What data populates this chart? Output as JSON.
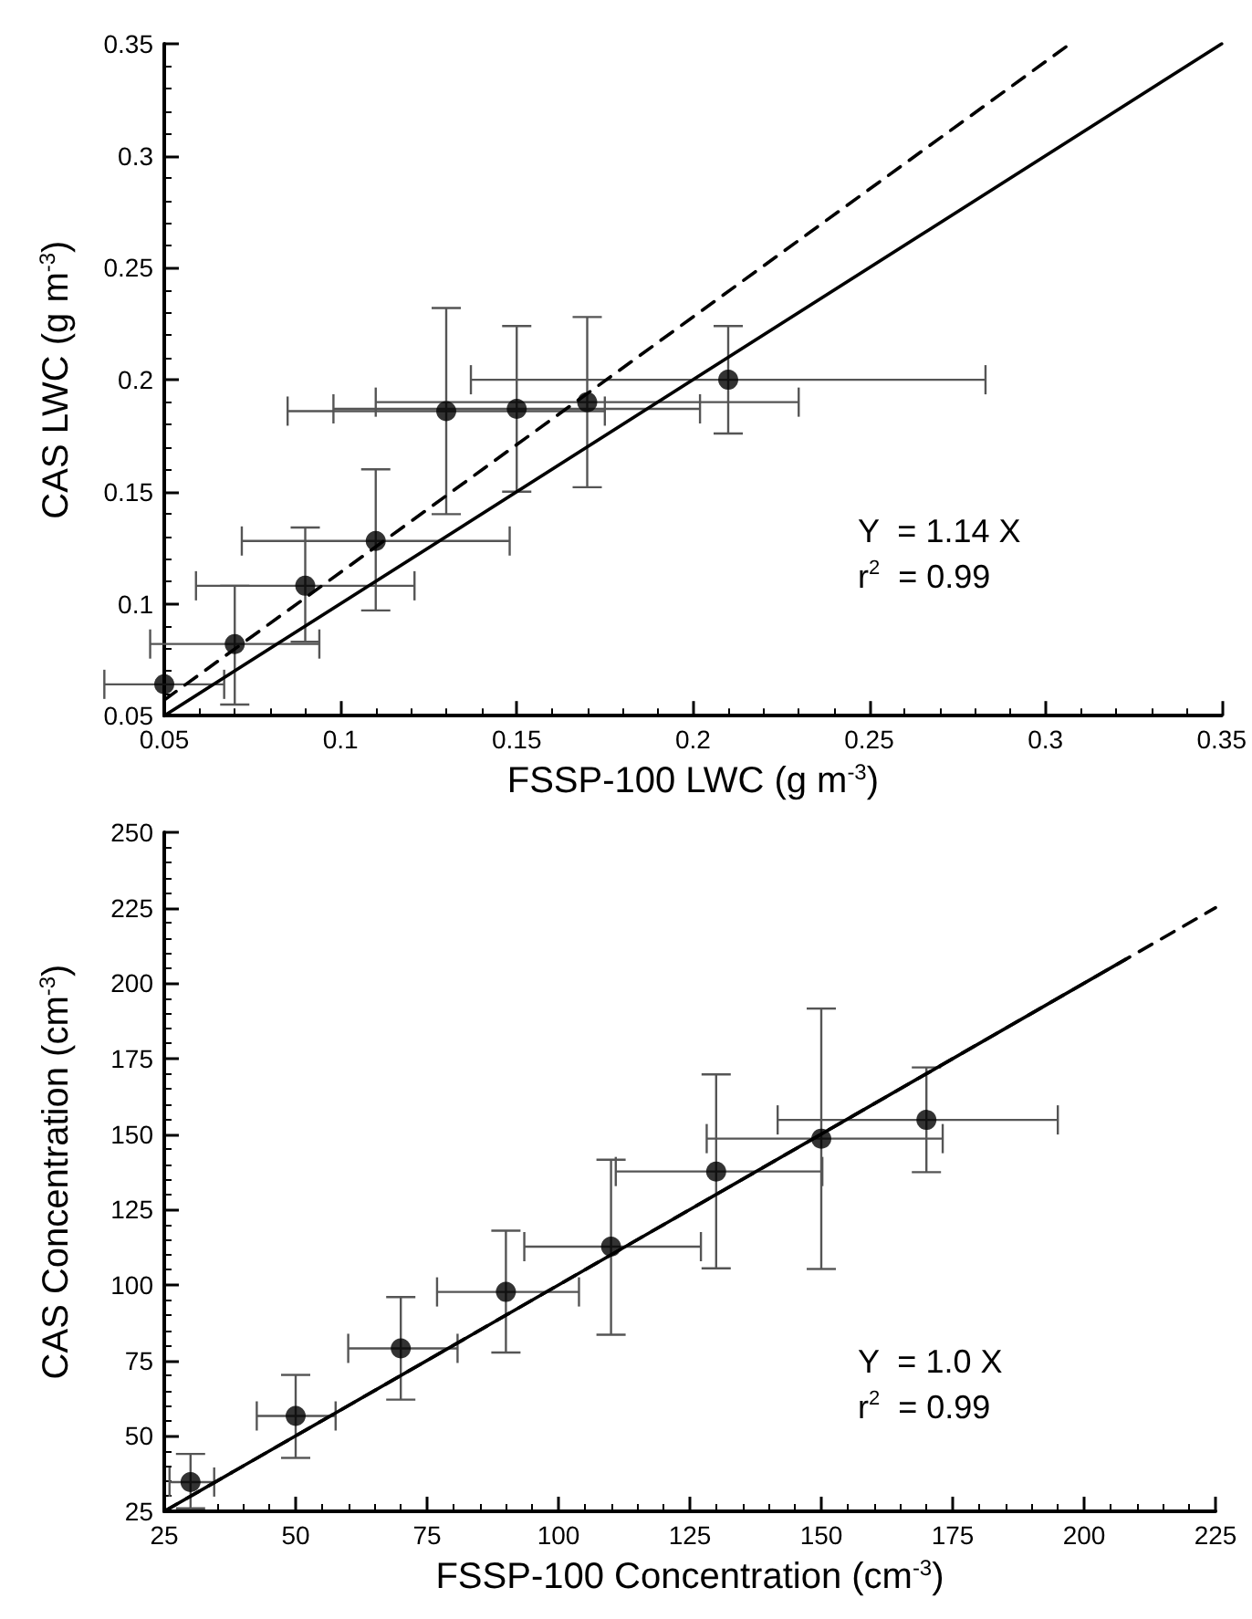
{
  "chart_data": [
    {
      "type": "scatter",
      "xlabel": "FSSP-100 LWC (g m$^{-3}$)",
      "ylabel": "CAS LWC (g m$^{-3}$)",
      "xlim": [
        0.05,
        0.35
      ],
      "ylim": [
        0.05,
        0.35
      ],
      "xticks": [
        0.05,
        0.1,
        0.15,
        0.2,
        0.25,
        0.3,
        0.35
      ],
      "yticks": [
        0.05,
        0.1,
        0.15,
        0.2,
        0.25,
        0.3,
        0.35
      ],
      "annotations": [
        "Y  = 1.14 X",
        "r$^{2}$  = 0.99"
      ],
      "series": [
        {
          "marker": "circle",
          "color": "#000000",
          "x": [
            0.05,
            0.07,
            0.09,
            0.11,
            0.13,
            0.15,
            0.17,
            0.21
          ],
          "values": [
            0.064,
            0.082,
            0.108,
            0.128,
            0.186,
            0.187,
            0.19,
            0.2
          ],
          "errors": [
            null,
            [
              0.055,
              0.108
            ],
            [
              0.083,
              0.134
            ],
            [
              0.097,
              0.16
            ],
            [
              0.14,
              0.232
            ],
            [
              0.15,
              0.224
            ],
            [
              0.152,
              0.228
            ],
            [
              0.176,
              0.224
            ]
          ],
          "xerrors": [
            [
              0.033,
              0.067
            ],
            [
              0.046,
              0.094
            ],
            [
              0.059,
              0.121
            ],
            [
              0.072,
              0.148
            ],
            [
              0.085,
              0.175
            ],
            [
              0.098,
              0.202
            ],
            [
              0.11,
              0.23
            ],
            [
              0.137,
              0.283
            ]
          ]
        },
        {
          "type": "line",
          "marker": "none",
          "line_style": "solid",
          "color": "#000000",
          "x": [
            0.05,
            0.35
          ],
          "values": [
            0.05,
            0.35
          ]
        },
        {
          "type": "line",
          "marker": "none",
          "line_style": "dashed",
          "color": "#000000",
          "x": [
            0.05,
            0.307
          ],
          "values": [
            0.057,
            0.35
          ]
        }
      ]
    },
    {
      "type": "scatter",
      "xlabel": "FSSP-100 Concentration (cm$^{-3}$)",
      "ylabel": "CAS Concentration (cm$^{-3}$)",
      "xlim": [
        25,
        225
      ],
      "ylim": [
        25,
        250
      ],
      "xticks": [
        25,
        50,
        75,
        100,
        125,
        150,
        175,
        200,
        225
      ],
      "yticks": [
        25,
        50,
        75,
        100,
        125,
        150,
        175,
        200,
        225,
        250
      ],
      "annotations": [
        "Y  = 1.0 X",
        "r$^{2}$  = 0.99"
      ],
      "series": [
        {
          "marker": "circle",
          "color": "#000000",
          "x": [
            30,
            50,
            70,
            90,
            110,
            130,
            150,
            170
          ],
          "values": [
            34.7,
            56.6,
            79,
            97.7,
            112.7,
            137.6,
            148.5,
            154.7
          ],
          "errors": [
            [
              26,
              44
            ],
            [
              42.7,
              70.2
            ],
            [
              62,
              96
            ],
            [
              77.6,
              118
            ],
            [
              83.5,
              141.5
            ],
            [
              105.5,
              169.8
            ],
            [
              105.3,
              191.6
            ],
            [
              137.4,
              172.1
            ]
          ],
          "xerrors": [
            [
              26,
              34.5
            ],
            [
              42.6,
              57.6
            ],
            [
              60,
              80.8
            ],
            [
              76.9,
              103.9
            ],
            [
              93.5,
              127.1
            ],
            [
              110.9,
              150.2
            ],
            [
              128.2,
              173.1
            ],
            [
              141.7,
              195
            ]
          ]
        },
        {
          "type": "line",
          "marker": "none",
          "line_style": "solid",
          "color": "#000000",
          "x": [
            25,
            208
          ],
          "values": [
            25,
            208
          ]
        },
        {
          "type": "line",
          "marker": "none",
          "line_style": "dashed",
          "color": "#000000",
          "x": [
            25,
            225
          ],
          "values": [
            25,
            225
          ]
        }
      ]
    }
  ]
}
